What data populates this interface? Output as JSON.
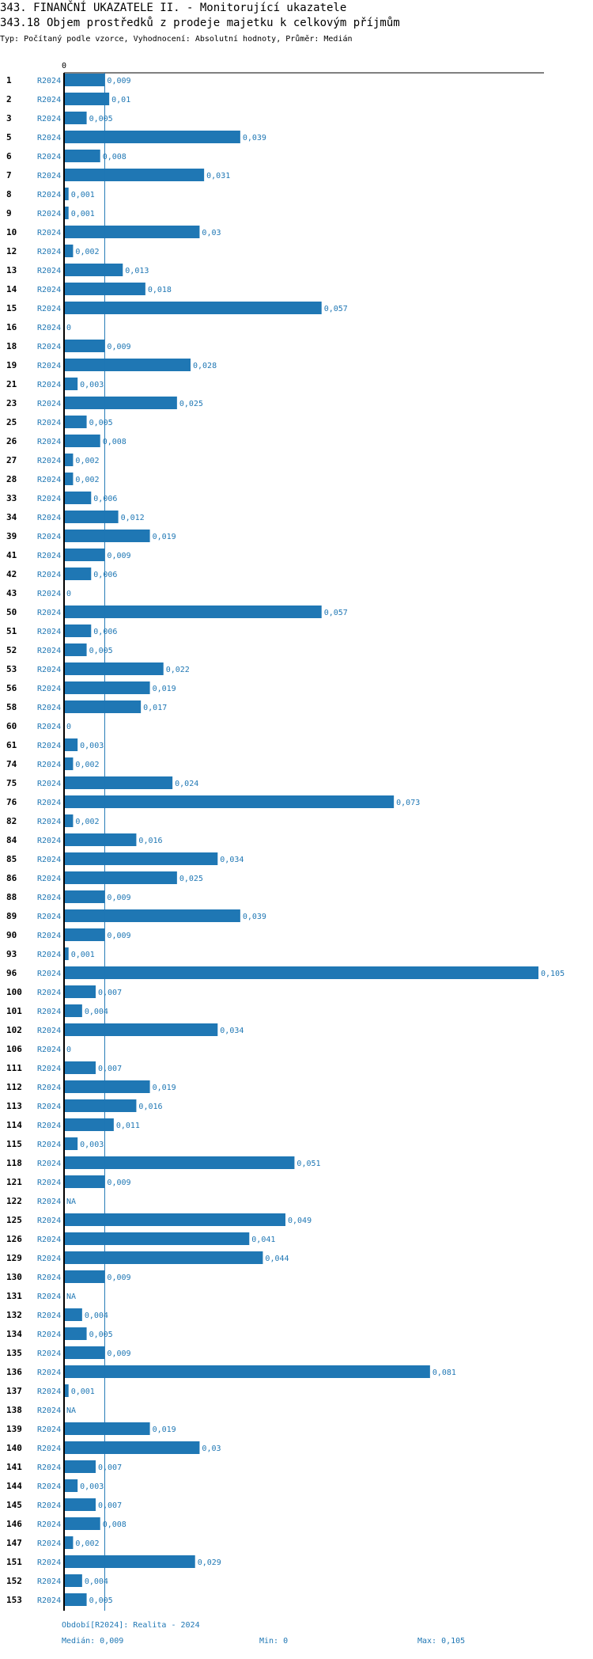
{
  "title": "343. FINANČNÍ UKAZATELE II. - Monitorující ukazatele",
  "subtitle": "343.18 Objem prostředků z prodeje majetku k celkovým příjmům",
  "description": "Typ: Počítaný podle vzorce, Vyhodnocení: Absolutní hodnoty, Průměr: Medián",
  "colors": {
    "bar": "#1f77b4",
    "label": "#1f77b4",
    "axis": "#000000",
    "median_line": "#1f77b4"
  },
  "footer": {
    "period": "Období[R2024]: Realita - 2024",
    "median": "Medián: 0,009",
    "min": "Min: 0",
    "max": "Max: 0,105"
  },
  "chart_data": {
    "type": "bar",
    "orientation": "horizontal",
    "series_name": "R2024",
    "xlim": [
      0,
      0.105
    ],
    "x_tick_label": "0",
    "median": 0.009,
    "rows": [
      {
        "id": "1",
        "series": "R2024",
        "value": 0.009,
        "label": "0,009"
      },
      {
        "id": "2",
        "series": "R2024",
        "value": 0.01,
        "label": "0,01"
      },
      {
        "id": "3",
        "series": "R2024",
        "value": 0.005,
        "label": "0,005"
      },
      {
        "id": "5",
        "series": "R2024",
        "value": 0.039,
        "label": "0,039"
      },
      {
        "id": "6",
        "series": "R2024",
        "value": 0.008,
        "label": "0,008"
      },
      {
        "id": "7",
        "series": "R2024",
        "value": 0.031,
        "label": "0,031"
      },
      {
        "id": "8",
        "series": "R2024",
        "value": 0.001,
        "label": "0,001"
      },
      {
        "id": "9",
        "series": "R2024",
        "value": 0.001,
        "label": "0,001"
      },
      {
        "id": "10",
        "series": "R2024",
        "value": 0.03,
        "label": "0,03"
      },
      {
        "id": "12",
        "series": "R2024",
        "value": 0.002,
        "label": "0,002"
      },
      {
        "id": "13",
        "series": "R2024",
        "value": 0.013,
        "label": "0,013"
      },
      {
        "id": "14",
        "series": "R2024",
        "value": 0.018,
        "label": "0,018"
      },
      {
        "id": "15",
        "series": "R2024",
        "value": 0.057,
        "label": "0,057"
      },
      {
        "id": "16",
        "series": "R2024",
        "value": 0,
        "label": "0"
      },
      {
        "id": "18",
        "series": "R2024",
        "value": 0.009,
        "label": "0,009"
      },
      {
        "id": "19",
        "series": "R2024",
        "value": 0.028,
        "label": "0,028"
      },
      {
        "id": "21",
        "series": "R2024",
        "value": 0.003,
        "label": "0,003"
      },
      {
        "id": "23",
        "series": "R2024",
        "value": 0.025,
        "label": "0,025"
      },
      {
        "id": "25",
        "series": "R2024",
        "value": 0.005,
        "label": "0,005"
      },
      {
        "id": "26",
        "series": "R2024",
        "value": 0.008,
        "label": "0,008"
      },
      {
        "id": "27",
        "series": "R2024",
        "value": 0.002,
        "label": "0,002"
      },
      {
        "id": "28",
        "series": "R2024",
        "value": 0.002,
        "label": "0,002"
      },
      {
        "id": "33",
        "series": "R2024",
        "value": 0.006,
        "label": "0,006"
      },
      {
        "id": "34",
        "series": "R2024",
        "value": 0.012,
        "label": "0,012"
      },
      {
        "id": "39",
        "series": "R2024",
        "value": 0.019,
        "label": "0,019"
      },
      {
        "id": "41",
        "series": "R2024",
        "value": 0.009,
        "label": "0,009"
      },
      {
        "id": "42",
        "series": "R2024",
        "value": 0.006,
        "label": "0,006"
      },
      {
        "id": "43",
        "series": "R2024",
        "value": 0,
        "label": "0"
      },
      {
        "id": "50",
        "series": "R2024",
        "value": 0.057,
        "label": "0,057"
      },
      {
        "id": "51",
        "series": "R2024",
        "value": 0.006,
        "label": "0,006"
      },
      {
        "id": "52",
        "series": "R2024",
        "value": 0.005,
        "label": "0,005"
      },
      {
        "id": "53",
        "series": "R2024",
        "value": 0.022,
        "label": "0,022"
      },
      {
        "id": "56",
        "series": "R2024",
        "value": 0.019,
        "label": "0,019"
      },
      {
        "id": "58",
        "series": "R2024",
        "value": 0.017,
        "label": "0,017"
      },
      {
        "id": "60",
        "series": "R2024",
        "value": 0,
        "label": "0"
      },
      {
        "id": "61",
        "series": "R2024",
        "value": 0.003,
        "label": "0,003"
      },
      {
        "id": "74",
        "series": "R2024",
        "value": 0.002,
        "label": "0,002"
      },
      {
        "id": "75",
        "series": "R2024",
        "value": 0.024,
        "label": "0,024"
      },
      {
        "id": "76",
        "series": "R2024",
        "value": 0.073,
        "label": "0,073"
      },
      {
        "id": "82",
        "series": "R2024",
        "value": 0.002,
        "label": "0,002"
      },
      {
        "id": "84",
        "series": "R2024",
        "value": 0.016,
        "label": "0,016"
      },
      {
        "id": "85",
        "series": "R2024",
        "value": 0.034,
        "label": "0,034"
      },
      {
        "id": "86",
        "series": "R2024",
        "value": 0.025,
        "label": "0,025"
      },
      {
        "id": "88",
        "series": "R2024",
        "value": 0.009,
        "label": "0,009"
      },
      {
        "id": "89",
        "series": "R2024",
        "value": 0.039,
        "label": "0,039"
      },
      {
        "id": "90",
        "series": "R2024",
        "value": 0.009,
        "label": "0,009"
      },
      {
        "id": "93",
        "series": "R2024",
        "value": 0.001,
        "label": "0,001"
      },
      {
        "id": "96",
        "series": "R2024",
        "value": 0.105,
        "label": "0,105"
      },
      {
        "id": "100",
        "series": "R2024",
        "value": 0.007,
        "label": "0,007"
      },
      {
        "id": "101",
        "series": "R2024",
        "value": 0.004,
        "label": "0,004"
      },
      {
        "id": "102",
        "series": "R2024",
        "value": 0.034,
        "label": "0,034"
      },
      {
        "id": "106",
        "series": "R2024",
        "value": 0,
        "label": "0"
      },
      {
        "id": "111",
        "series": "R2024",
        "value": 0.007,
        "label": "0,007"
      },
      {
        "id": "112",
        "series": "R2024",
        "value": 0.019,
        "label": "0,019"
      },
      {
        "id": "113",
        "series": "R2024",
        "value": 0.016,
        "label": "0,016"
      },
      {
        "id": "114",
        "series": "R2024",
        "value": 0.011,
        "label": "0,011"
      },
      {
        "id": "115",
        "series": "R2024",
        "value": 0.003,
        "label": "0,003"
      },
      {
        "id": "118",
        "series": "R2024",
        "value": 0.051,
        "label": "0,051"
      },
      {
        "id": "121",
        "series": "R2024",
        "value": 0.009,
        "label": "0,009"
      },
      {
        "id": "122",
        "series": "R2024",
        "value": null,
        "label": "NA"
      },
      {
        "id": "125",
        "series": "R2024",
        "value": 0.049,
        "label": "0,049"
      },
      {
        "id": "126",
        "series": "R2024",
        "value": 0.041,
        "label": "0,041"
      },
      {
        "id": "129",
        "series": "R2024",
        "value": 0.044,
        "label": "0,044"
      },
      {
        "id": "130",
        "series": "R2024",
        "value": 0.009,
        "label": "0,009"
      },
      {
        "id": "131",
        "series": "R2024",
        "value": null,
        "label": "NA"
      },
      {
        "id": "132",
        "series": "R2024",
        "value": 0.004,
        "label": "0,004"
      },
      {
        "id": "134",
        "series": "R2024",
        "value": 0.005,
        "label": "0,005"
      },
      {
        "id": "135",
        "series": "R2024",
        "value": 0.009,
        "label": "0,009"
      },
      {
        "id": "136",
        "series": "R2024",
        "value": 0.081,
        "label": "0,081"
      },
      {
        "id": "137",
        "series": "R2024",
        "value": 0.001,
        "label": "0,001"
      },
      {
        "id": "138",
        "series": "R2024",
        "value": null,
        "label": "NA"
      },
      {
        "id": "139",
        "series": "R2024",
        "value": 0.019,
        "label": "0,019"
      },
      {
        "id": "140",
        "series": "R2024",
        "value": 0.03,
        "label": "0,03"
      },
      {
        "id": "141",
        "series": "R2024",
        "value": 0.007,
        "label": "0,007"
      },
      {
        "id": "144",
        "series": "R2024",
        "value": 0.003,
        "label": "0,003"
      },
      {
        "id": "145",
        "series": "R2024",
        "value": 0.007,
        "label": "0,007"
      },
      {
        "id": "146",
        "series": "R2024",
        "value": 0.008,
        "label": "0,008"
      },
      {
        "id": "147",
        "series": "R2024",
        "value": 0.002,
        "label": "0,002"
      },
      {
        "id": "151",
        "series": "R2024",
        "value": 0.029,
        "label": "0,029"
      },
      {
        "id": "152",
        "series": "R2024",
        "value": 0.004,
        "label": "0,004"
      },
      {
        "id": "153",
        "series": "R2024",
        "value": 0.005,
        "label": "0,005"
      }
    ]
  }
}
